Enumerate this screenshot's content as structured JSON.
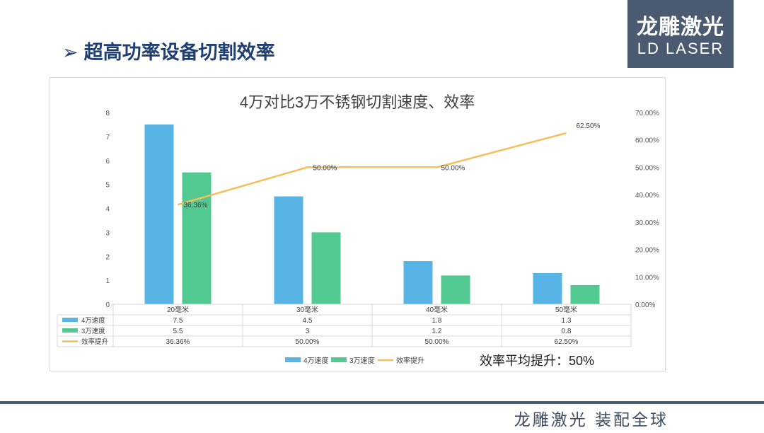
{
  "slide": {
    "title": "超高功率设备切割效率",
    "title_icon": "arrow-right-icon",
    "logo_cn": "龙雕激光",
    "logo_en": "LD LASER",
    "footer": "龙雕激光 装配全球",
    "colors": {
      "logo_bg": "#4a5a70",
      "title": "#1f3f73"
    }
  },
  "chart_data": {
    "type": "bar",
    "title": "4万对比3万不锈钢切割速度、效率",
    "categories": [
      "20毫米",
      "30毫米",
      "40毫米",
      "50毫米"
    ],
    "series": [
      {
        "name": "4万速度",
        "type": "bar",
        "axis": "left",
        "color": "#57b4e4",
        "values": [
          7.5,
          4.5,
          1.8,
          1.3
        ],
        "table_values": [
          "7.5",
          "4.5",
          "1.8",
          "1.3"
        ]
      },
      {
        "name": "3万速度",
        "type": "bar",
        "axis": "left",
        "color": "#53c992",
        "values": [
          5.5,
          3,
          1.2,
          0.8
        ],
        "table_values": [
          "5.5",
          "3",
          "1.2",
          "0.8"
        ]
      },
      {
        "name": "效率提升",
        "type": "line",
        "axis": "right",
        "color": "#f7bf5c",
        "values": [
          36.36,
          50,
          50,
          62.5
        ],
        "labels": [
          "36.36%",
          "50.00%",
          "50.00%",
          "62.50%"
        ],
        "table_values": [
          "36.36%",
          "50.00%",
          "50.00%",
          "62.50%"
        ]
      }
    ],
    "y_left": {
      "min": 0,
      "max": 8,
      "ticks": [
        "0",
        "1",
        "2",
        "3",
        "4",
        "5",
        "6",
        "7",
        "8"
      ]
    },
    "y_right": {
      "min": 0,
      "max": 70,
      "ticks": [
        "0.00%",
        "10.00%",
        "20.00%",
        "30.00%",
        "40.00%",
        "50.00%",
        "60.00%",
        "70.00%"
      ]
    },
    "grid": false,
    "legend": "bottom",
    "data_table": true,
    "annotation": "效率平均提升：50%"
  }
}
